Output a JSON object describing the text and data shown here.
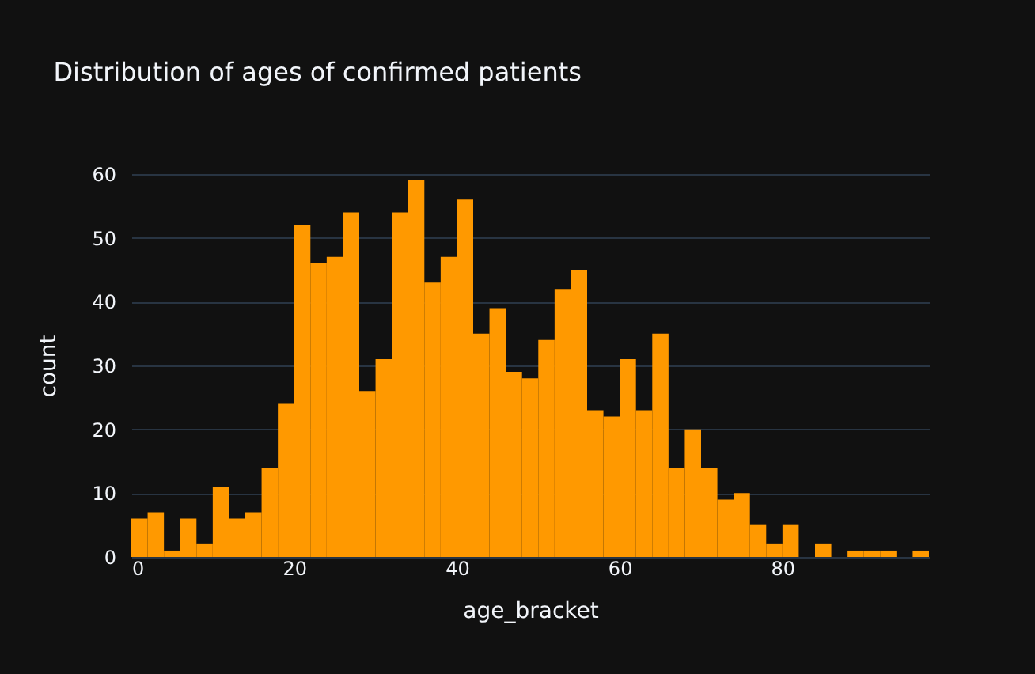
{
  "chart_data": {
    "type": "histogram",
    "title": "Distribution of ages of confirmed patients",
    "xlabel": "age_bracket",
    "ylabel": "count",
    "color": "#ff9900",
    "bins": [
      0,
      2,
      4,
      6,
      8,
      10,
      12,
      14,
      16,
      18,
      20,
      22,
      24,
      26,
      28,
      30,
      32,
      34,
      36,
      38,
      40,
      42,
      44,
      46,
      48,
      50,
      52,
      54,
      56,
      58,
      60,
      62,
      64,
      66,
      68,
      70,
      72,
      74,
      76,
      78,
      80,
      82,
      84,
      86,
      88,
      90,
      92,
      94,
      96,
      98
    ],
    "values": [
      6,
      7,
      1,
      6,
      2,
      11,
      6,
      7,
      14,
      24,
      52,
      46,
      47,
      54,
      26,
      31,
      54,
      59,
      43,
      47,
      56,
      35,
      39,
      29,
      28,
      34,
      42,
      45,
      23,
      22,
      31,
      23,
      35,
      14,
      20,
      14,
      9,
      10,
      5,
      2,
      5,
      0,
      2,
      0,
      1,
      1,
      1,
      0,
      1
    ],
    "xlim": [
      0,
      98
    ],
    "xticks": [
      0,
      20,
      40,
      60,
      80
    ],
    "ylim": [
      0,
      60
    ],
    "yticks": [
      0,
      10,
      20,
      30,
      40,
      50,
      60
    ],
    "grid": "y"
  }
}
